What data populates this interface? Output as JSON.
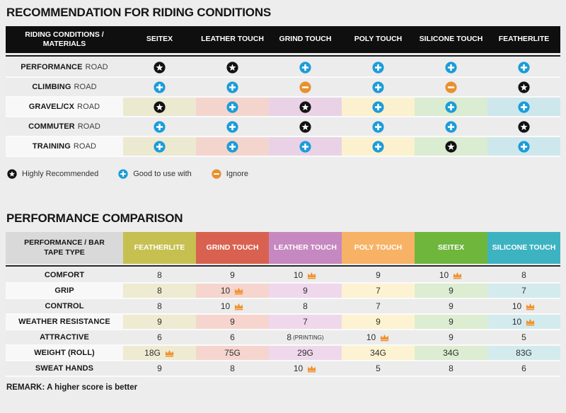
{
  "colors": {
    "row_gray": "#ececec",
    "tinted_label_bg": "#f8f8f8",
    "header_black": "#0f0f0f",
    "t2_label_header_bg": "#d9d9d9"
  },
  "icons": {
    "star": "#121212",
    "plus": "#1b9cd8",
    "minus": "#e8902e",
    "crown": "#f0922f"
  },
  "section1": {
    "title": "RECOMMENDATION FOR RIDING CONDITIONS",
    "table": {
      "header_label": "RIDING CONDITIONS / MATERIALS",
      "columns": [
        "SEITEX",
        "LEATHER TOUCH",
        "GRIND TOUCH",
        "POLY TOUCH",
        "SILICONE TOUCH",
        "FEATHERLITE"
      ],
      "tint_colors": [
        "#ece9d1",
        "#f4d5ce",
        "#e9d2e6",
        "#fbf1cf",
        "#daecd1",
        "#cee7ec"
      ],
      "rows": [
        {
          "label_bold": "PERFORMANCE",
          "label_rest": "ROAD",
          "tinted": false,
          "cells": [
            "star",
            "star",
            "plus",
            "plus",
            "plus",
            "plus"
          ]
        },
        {
          "label_bold": "CLIMBING",
          "label_rest": "ROAD",
          "tinted": false,
          "cells": [
            "plus",
            "plus",
            "minus",
            "plus",
            "minus",
            "star"
          ]
        },
        {
          "label_bold": "GRAVEL/CX",
          "label_rest": "ROAD",
          "tinted": true,
          "cells": [
            "star",
            "plus",
            "star",
            "plus",
            "plus",
            "plus"
          ]
        },
        {
          "label_bold": "COMMUTER",
          "label_rest": "ROAD",
          "tinted": false,
          "cells": [
            "plus",
            "plus",
            "star",
            "plus",
            "plus",
            "star"
          ]
        },
        {
          "label_bold": "TRAINING",
          "label_rest": "ROAD",
          "tinted": true,
          "cells": [
            "plus",
            "plus",
            "plus",
            "plus",
            "star",
            "plus"
          ]
        }
      ]
    },
    "legend": [
      {
        "icon": "star",
        "label": "Highly Recommended"
      },
      {
        "icon": "plus",
        "label": "Good to use with"
      },
      {
        "icon": "minus",
        "label": "Ignore"
      }
    ]
  },
  "section2": {
    "title": "PERFORMANCE COMPARISON",
    "table": {
      "header_label": "PERFORMANCE / BAR TAPE TYPE",
      "columns": [
        {
          "label": "FEATHERLITE",
          "color": "#c6c050",
          "tint": "#eeebd2"
        },
        {
          "label": "GRIND TOUCH",
          "color": "#d96150",
          "tint": "#f6d5ce"
        },
        {
          "label": "LEATHER TOUCH",
          "color": "#c688c0",
          "tint": "#f0d8ec"
        },
        {
          "label": "POLY TOUCH",
          "color": "#f7b266",
          "tint": "#fdf3d2"
        },
        {
          "label": "SEITEX",
          "color": "#6fb63d",
          "tint": "#dcedd2"
        },
        {
          "label": "SILICONE TOUCH",
          "color": "#3db3c2",
          "tint": "#d4ebee"
        }
      ],
      "rows": [
        {
          "label": "COMFORT",
          "tinted": false,
          "cells": [
            {
              "v": "8"
            },
            {
              "v": "9"
            },
            {
              "v": "10",
              "crown": true
            },
            {
              "v": "9"
            },
            {
              "v": "10",
              "crown": true
            },
            {
              "v": "8"
            }
          ]
        },
        {
          "label": "GRIP",
          "tinted": true,
          "cells": [
            {
              "v": "8"
            },
            {
              "v": "10",
              "crown": true
            },
            {
              "v": "9"
            },
            {
              "v": "7"
            },
            {
              "v": "9"
            },
            {
              "v": "7"
            }
          ]
        },
        {
          "label": "CONTROL",
          "tinted": false,
          "cells": [
            {
              "v": "8"
            },
            {
              "v": "10",
              "crown": true
            },
            {
              "v": "8"
            },
            {
              "v": "7"
            },
            {
              "v": "9"
            },
            {
              "v": "10",
              "crown": true
            }
          ]
        },
        {
          "label": "WEATHER RESISTANCE",
          "tinted": true,
          "cells": [
            {
              "v": "9"
            },
            {
              "v": "9"
            },
            {
              "v": "7"
            },
            {
              "v": "9"
            },
            {
              "v": "9"
            },
            {
              "v": "10",
              "crown": true
            }
          ]
        },
        {
          "label": "ATTRACTIVE",
          "tinted": false,
          "cells": [
            {
              "v": "6"
            },
            {
              "v": "6"
            },
            {
              "v": "8",
              "note": "(PRINTING)"
            },
            {
              "v": "10",
              "crown": true
            },
            {
              "v": "9"
            },
            {
              "v": "5"
            }
          ]
        },
        {
          "label": "WEIGHT (ROLL)",
          "tinted": true,
          "cells": [
            {
              "v": "18G",
              "crown": true
            },
            {
              "v": "75G"
            },
            {
              "v": "29G"
            },
            {
              "v": "34G"
            },
            {
              "v": "34G"
            },
            {
              "v": "83G"
            }
          ]
        },
        {
          "label": "SWEAT HANDS",
          "tinted": false,
          "cells": [
            {
              "v": "9"
            },
            {
              "v": "8"
            },
            {
              "v": "10",
              "crown": true
            },
            {
              "v": "5"
            },
            {
              "v": "8"
            },
            {
              "v": "6"
            }
          ]
        }
      ]
    },
    "remark": "REMARK: A higher score is better"
  }
}
